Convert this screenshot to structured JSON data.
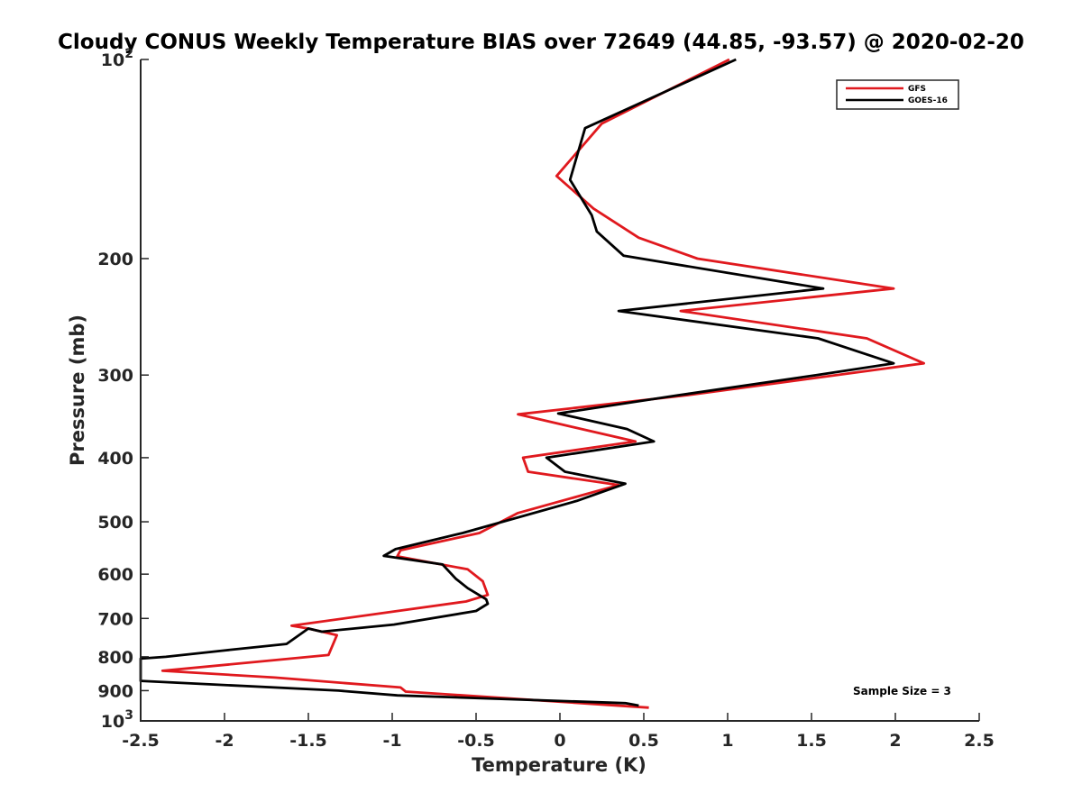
{
  "chart_data": {
    "type": "line",
    "title": "Cloudy CONUS Weekly Temperature BIAS over 72649 (44.85, -93.57) @ 2020-02-20",
    "xlabel": "Temperature (K)",
    "ylabel": "Pressure (mb)",
    "xlim": [
      -2.5,
      2.5
    ],
    "ylim": [
      100,
      1000
    ],
    "y_scale": "log",
    "y_reversed": true,
    "grid": false,
    "legend_position": "top-right",
    "x_ticks": [
      -2.5,
      -2,
      -1.5,
      -1,
      -0.5,
      0,
      0.5,
      1,
      1.5,
      2,
      2.5
    ],
    "x_tick_labels": [
      "-2.5",
      "-2",
      "-1.5",
      "-1",
      "-0.5",
      "0",
      "0.5",
      "1",
      "1.5",
      "2",
      "2.5"
    ],
    "y_ticks": [
      {
        "value": 100,
        "base": "10",
        "exp": "2"
      },
      {
        "value": 200,
        "label": "200"
      },
      {
        "value": 300,
        "label": "300"
      },
      {
        "value": 400,
        "label": "400"
      },
      {
        "value": 500,
        "label": "500"
      },
      {
        "value": 600,
        "label": "600"
      },
      {
        "value": 700,
        "label": "700"
      },
      {
        "value": 800,
        "label": "800"
      },
      {
        "value": 900,
        "label": "900"
      },
      {
        "value": 1000,
        "base": "10",
        "exp": "3"
      }
    ],
    "annotation": "Sample Size = 3",
    "series": [
      {
        "name": "GFS",
        "color": "#e0191e",
        "points": [
          [
            1.01,
            100
          ],
          [
            0.25,
            125
          ],
          [
            -0.02,
            150
          ],
          [
            0.2,
            168
          ],
          [
            0.47,
            186
          ],
          [
            0.82,
            200
          ],
          [
            1.99,
            222
          ],
          [
            0.72,
            240
          ],
          [
            1.83,
            264
          ],
          [
            2.17,
            288
          ],
          [
            0.75,
            322
          ],
          [
            -0.25,
            344
          ],
          [
            0.45,
            378
          ],
          [
            -0.22,
            400
          ],
          [
            -0.19,
            420
          ],
          [
            0.35,
            440
          ],
          [
            -0.25,
            485
          ],
          [
            -0.48,
            520
          ],
          [
            -0.95,
            552
          ],
          [
            -0.97,
            564
          ],
          [
            -0.55,
            590
          ],
          [
            -0.46,
            615
          ],
          [
            -0.43,
            645
          ],
          [
            -0.56,
            660
          ],
          [
            -1.6,
            718
          ],
          [
            -1.5,
            725
          ],
          [
            -1.33,
            742
          ],
          [
            -1.38,
            795
          ],
          [
            -2.37,
            840
          ],
          [
            -1.7,
            860
          ],
          [
            -0.95,
            890
          ],
          [
            -0.92,
            903
          ],
          [
            0.53,
            955
          ]
        ]
      },
      {
        "name": "GOES-16",
        "color": "#000000",
        "points": [
          [
            1.05,
            100
          ],
          [
            0.15,
            127
          ],
          [
            0.06,
            152
          ],
          [
            0.19,
            172
          ],
          [
            0.22,
            182
          ],
          [
            0.38,
            198
          ],
          [
            1.57,
            222
          ],
          [
            0.35,
            240
          ],
          [
            1.54,
            264
          ],
          [
            1.99,
            288
          ],
          [
            1.53,
            300
          ],
          [
            0.7,
            322
          ],
          [
            -0.01,
            343
          ],
          [
            0.4,
            362
          ],
          [
            0.56,
            378
          ],
          [
            -0.08,
            400
          ],
          [
            0.03,
            420
          ],
          [
            0.39,
            438
          ],
          [
            0.1,
            465
          ],
          [
            -0.58,
            520
          ],
          [
            -0.98,
            550
          ],
          [
            -1.05,
            563
          ],
          [
            -0.7,
            580
          ],
          [
            -0.62,
            610
          ],
          [
            -0.55,
            630
          ],
          [
            -0.44,
            655
          ],
          [
            -0.43,
            665
          ],
          [
            -0.5,
            682
          ],
          [
            -0.99,
            715
          ],
          [
            -1.42,
            733
          ],
          [
            -1.5,
            725
          ],
          [
            -1.63,
            765
          ],
          [
            -1.99,
            782
          ],
          [
            -2.35,
            800
          ],
          [
            -2.5,
            805
          ],
          [
            -2.5,
            870
          ],
          [
            -1.32,
            900
          ],
          [
            -0.97,
            915
          ],
          [
            0.39,
            940
          ],
          [
            0.47,
            948
          ]
        ]
      }
    ]
  }
}
